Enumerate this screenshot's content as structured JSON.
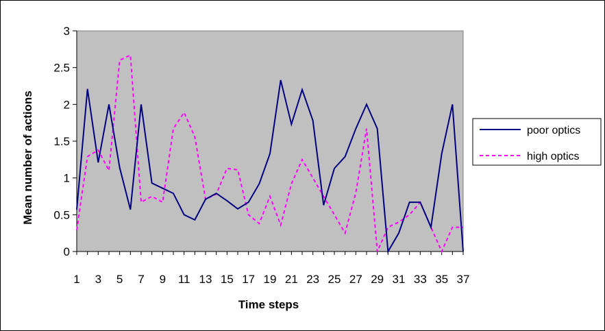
{
  "chart_data": {
    "type": "line",
    "title": "",
    "xlabel": "Time steps",
    "ylabel": "Mean number of actions",
    "x": [
      1,
      2,
      3,
      4,
      5,
      6,
      7,
      8,
      9,
      10,
      11,
      12,
      13,
      14,
      15,
      16,
      17,
      18,
      19,
      20,
      21,
      22,
      23,
      24,
      25,
      26,
      27,
      28,
      29,
      30,
      31,
      32,
      33,
      34,
      35,
      36,
      37
    ],
    "x_tick_labels": [
      "1",
      "3",
      "5",
      "7",
      "9",
      "11",
      "13",
      "15",
      "17",
      "19",
      "21",
      "23",
      "25",
      "27",
      "29",
      "31",
      "33",
      "35",
      "37"
    ],
    "y_tick_labels": [
      "0",
      "0.5",
      "1",
      "1.5",
      "2",
      "2.5",
      "3"
    ],
    "ylim": [
      0,
      3
    ],
    "y_ticks": [
      0,
      0.5,
      1,
      1.5,
      2,
      2.5,
      3
    ],
    "plot_background": "#c0c0c0",
    "grid": false,
    "legend": "right",
    "series": [
      {
        "name": "poor optics",
        "color": "#000080",
        "style": "solid",
        "values": [
          0.57,
          2.21,
          1.21,
          2.0,
          1.14,
          0.57,
          2.0,
          0.93,
          0.86,
          0.79,
          0.5,
          0.43,
          0.71,
          0.79,
          0.69,
          0.58,
          0.67,
          0.92,
          1.33,
          2.33,
          1.73,
          2.2,
          1.78,
          0.63,
          1.13,
          1.29,
          1.67,
          2.0,
          1.67,
          0.0,
          0.25,
          0.67,
          0.67,
          0.33,
          1.33,
          2.0,
          0.0
        ]
      },
      {
        "name": "high optics",
        "color": "#ff00ff",
        "style": "dashed",
        "values": [
          0.29,
          1.29,
          1.38,
          1.1,
          2.6,
          2.67,
          0.67,
          0.75,
          0.67,
          1.67,
          1.89,
          1.56,
          0.71,
          0.78,
          1.13,
          1.11,
          0.5,
          0.38,
          0.75,
          0.36,
          0.92,
          1.25,
          1.0,
          0.75,
          0.5,
          0.25,
          0.8,
          1.67,
          0.0,
          0.33,
          0.4,
          0.5,
          0.67,
          0.33,
          0.0,
          0.33,
          0.33
        ]
      }
    ]
  }
}
